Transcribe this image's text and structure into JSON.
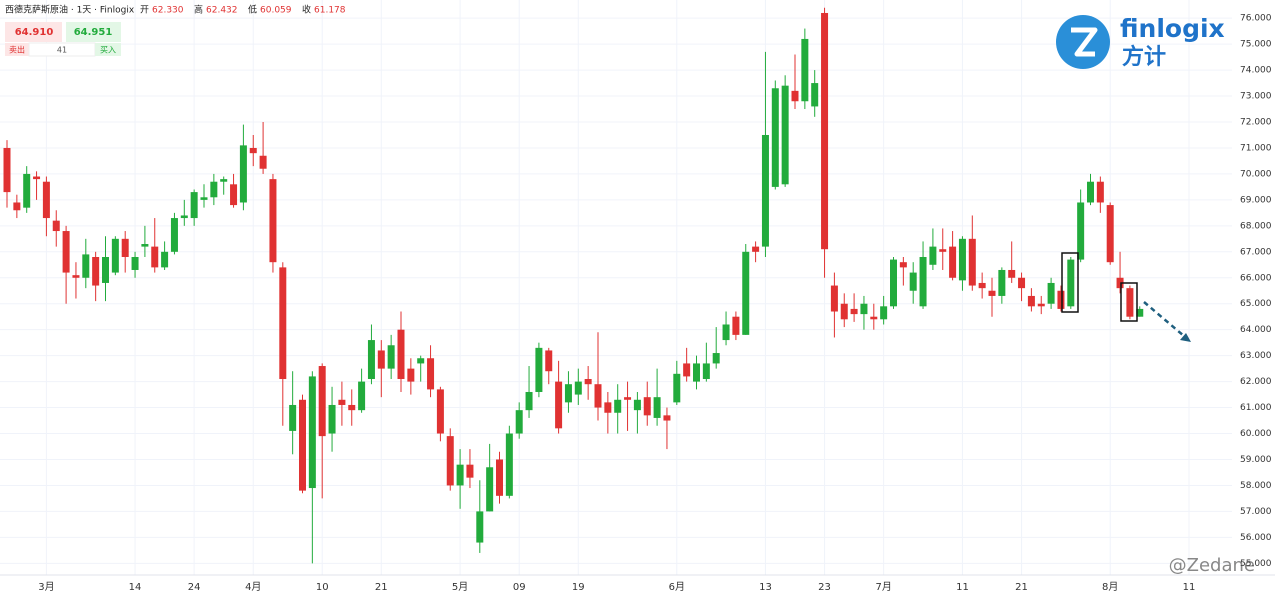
{
  "chart_data": {
    "type": "candlestick",
    "title": "西德克萨斯原油 · 1天 · Finlogix",
    "up_color": "#22ab3c",
    "down_color": "#e03232",
    "grid": true,
    "ylim": [
      54.55,
      76.7
    ],
    "yticks": [
      {
        "value": 55,
        "label": "55.000"
      },
      {
        "value": 56,
        "label": "56.000"
      },
      {
        "value": 57,
        "label": "57.000"
      },
      {
        "value": 58,
        "label": "58.000"
      },
      {
        "value": 59,
        "label": "59.000"
      },
      {
        "value": 60,
        "label": "60.000"
      },
      {
        "value": 61,
        "label": "61.000"
      },
      {
        "value": 62,
        "label": "62.000"
      },
      {
        "value": 63,
        "label": "63.000"
      },
      {
        "value": 64,
        "label": "64.000"
      },
      {
        "value": 65,
        "label": "65.000"
      },
      {
        "value": 66,
        "label": "66.000"
      },
      {
        "value": 67,
        "label": "67.000"
      },
      {
        "value": 68,
        "label": "68.000"
      },
      {
        "value": 69,
        "label": "69.000"
      },
      {
        "value": 70,
        "label": "70.000"
      },
      {
        "value": 71,
        "label": "71.000"
      },
      {
        "value": 72,
        "label": "72.000"
      },
      {
        "value": 73,
        "label": "73.000"
      },
      {
        "value": 74,
        "label": "74.000"
      },
      {
        "value": 75,
        "label": "75.000"
      },
      {
        "value": 76,
        "label": "76.000"
      }
    ],
    "categories": [
      null,
      null,
      null,
      null,
      "3月",
      null,
      null,
      null,
      null,
      null,
      null,
      null,
      null,
      "14",
      null,
      null,
      null,
      null,
      null,
      "24",
      null,
      null,
      null,
      null,
      null,
      "4月",
      null,
      null,
      null,
      null,
      null,
      null,
      "10",
      null,
      null,
      null,
      null,
      null,
      "21",
      null,
      null,
      null,
      null,
      null,
      null,
      null,
      "5月",
      null,
      null,
      null,
      null,
      null,
      "09",
      null,
      null,
      null,
      null,
      null,
      "19",
      null,
      null,
      null,
      null,
      null,
      null,
      null,
      null,
      null,
      "6月",
      null,
      null,
      null,
      null,
      null,
      null,
      null,
      null,
      "13",
      null,
      null,
      null,
      null,
      null,
      "23",
      null,
      null,
      null,
      null,
      null,
      "7月",
      null,
      null,
      null,
      null,
      null,
      null,
      null,
      "11",
      null,
      null,
      null,
      null,
      null,
      "21",
      null,
      null,
      null,
      null,
      null,
      null,
      null,
      null,
      "8月",
      null,
      null,
      null,
      null,
      null,
      null,
      null,
      "11"
    ],
    "open": [
      71.0,
      68.9,
      68.7,
      69.9,
      69.7,
      68.2,
      67.8,
      66.1,
      66.0,
      66.8,
      65.8,
      66.2,
      67.5,
      66.3,
      67.2,
      67.2,
      66.4,
      67.0,
      68.3,
      68.3,
      69.0,
      69.1,
      69.7,
      69.6,
      68.9,
      71.0,
      70.7,
      69.8,
      66.4,
      60.1,
      61.3,
      57.9,
      62.6,
      60.0,
      61.3,
      61.1,
      60.9,
      62.1,
      63.2,
      62.5,
      64.0,
      62.5,
      62.7,
      62.9,
      61.7,
      59.9,
      58.0,
      58.8,
      55.8,
      57.0,
      59.0,
      57.6,
      60.0,
      60.9,
      61.6,
      63.2,
      62.0,
      61.2,
      61.5,
      62.1,
      61.9,
      61.2,
      60.8,
      61.4,
      60.9,
      61.4,
      60.6,
      60.7,
      61.2,
      62.7,
      62.0,
      62.1,
      62.7,
      63.6,
      64.5,
      63.8,
      67.2,
      67.2,
      69.5,
      69.6,
      73.2,
      72.8,
      72.6,
      76.2,
      65.7,
      65.0,
      64.8,
      64.6,
      64.5,
      64.4,
      64.9,
      66.6,
      65.5,
      64.9,
      66.5,
      67.1,
      67.2,
      65.9,
      67.5,
      65.8,
      65.5,
      65.3,
      66.3,
      66.0,
      65.3,
      65.0,
      65.0,
      65.5,
      64.9,
      66.7,
      68.9,
      69.7,
      68.8,
      66.0,
      65.6,
      64.5,
      null,
      null,
      null,
      null,
      null
    ],
    "high": [
      71.3,
      69.2,
      70.3,
      70.1,
      69.9,
      68.6,
      68.0,
      66.6,
      67.5,
      67.0,
      67.6,
      67.6,
      67.8,
      67.0,
      68.0,
      68.3,
      67.4,
      68.5,
      69.0,
      69.4,
      69.6,
      70.0,
      69.9,
      70.0,
      71.9,
      71.5,
      72.0,
      70.0,
      66.6,
      62.4,
      61.5,
      62.4,
      62.7,
      61.8,
      62.0,
      61.7,
      62.5,
      64.2,
      63.6,
      63.8,
      64.7,
      62.9,
      63.0,
      63.4,
      61.8,
      60.2,
      59.4,
      59.4,
      58.2,
      59.6,
      59.3,
      60.3,
      61.2,
      62.6,
      63.5,
      63.3,
      62.8,
      62.4,
      62.5,
      62.6,
      63.9,
      61.6,
      61.9,
      62.0,
      61.6,
      62.0,
      62.5,
      61.0,
      62.8,
      63.3,
      63.0,
      63.5,
      64.1,
      64.7,
      64.7,
      67.3,
      67.4,
      74.7,
      73.6,
      73.8,
      74.6,
      75.6,
      74.0,
      76.4,
      66.2,
      65.4,
      65.4,
      65.3,
      65.0,
      65.3,
      66.8,
      66.8,
      66.6,
      67.4,
      67.9,
      67.9,
      67.8,
      67.6,
      68.4,
      66.2,
      66.0,
      66.4,
      67.4,
      66.2,
      65.6,
      65.3,
      66.0,
      65.7,
      66.8,
      69.4,
      70.0,
      69.9,
      68.9,
      67.0,
      65.7,
      64.9,
      null,
      null,
      null,
      null,
      null
    ],
    "low": [
      68.7,
      68.3,
      68.5,
      69.0,
      67.6,
      67.2,
      65.0,
      65.2,
      65.6,
      65.1,
      65.1,
      66.1,
      66.2,
      66.0,
      66.8,
      66.2,
      66.3,
      66.9,
      68.0,
      68.0,
      68.7,
      68.8,
      69.2,
      68.7,
      68.6,
      70.3,
      70.0,
      66.2,
      60.3,
      59.2,
      57.7,
      55.0,
      57.5,
      59.3,
      60.3,
      60.3,
      60.8,
      61.9,
      61.4,
      62.1,
      61.6,
      61.5,
      62.0,
      61.4,
      59.7,
      57.8,
      57.1,
      57.9,
      55.4,
      57.0,
      57.3,
      57.5,
      59.8,
      60.6,
      61.4,
      61.9,
      60.0,
      60.8,
      61.1,
      61.3,
      60.5,
      60.0,
      60.0,
      60.1,
      60.0,
      60.3,
      60.3,
      59.4,
      61.1,
      62.0,
      61.7,
      62.0,
      62.5,
      63.4,
      63.6,
      63.8,
      66.6,
      66.8,
      69.4,
      69.5,
      72.5,
      72.5,
      72.2,
      66.0,
      63.7,
      64.1,
      64.3,
      64.0,
      64.0,
      64.2,
      64.8,
      65.7,
      65.0,
      64.8,
      66.3,
      66.3,
      65.9,
      65.5,
      65.5,
      65.2,
      64.5,
      65.0,
      65.8,
      65.1,
      64.7,
      64.6,
      64.8,
      64.7,
      64.8,
      66.6,
      68.8,
      68.5,
      66.5,
      65.4,
      64.4,
      64.5,
      null,
      null,
      null,
      null,
      null
    ],
    "close": [
      69.3,
      68.6,
      70.0,
      69.8,
      68.3,
      67.8,
      66.2,
      66.0,
      66.9,
      65.7,
      66.8,
      67.5,
      66.8,
      66.8,
      67.3,
      66.4,
      67.0,
      68.3,
      68.4,
      69.3,
      69.1,
      69.7,
      69.8,
      68.8,
      71.1,
      70.8,
      70.2,
      66.6,
      62.1,
      61.1,
      57.8,
      62.2,
      59.9,
      61.1,
      61.1,
      60.9,
      62.0,
      63.6,
      62.5,
      63.4,
      62.1,
      62.0,
      62.9,
      61.7,
      60.0,
      58.0,
      58.8,
      58.3,
      57.0,
      58.7,
      57.6,
      60.0,
      60.9,
      61.6,
      63.3,
      62.4,
      60.2,
      61.9,
      62.0,
      61.9,
      61.0,
      60.8,
      61.3,
      61.3,
      61.3,
      60.7,
      61.4,
      60.5,
      62.3,
      62.2,
      62.7,
      62.7,
      63.1,
      64.2,
      63.8,
      67.0,
      67.0,
      71.5,
      73.3,
      73.4,
      72.8,
      75.2,
      73.5,
      67.1,
      64.7,
      64.4,
      64.6,
      65.0,
      64.4,
      64.9,
      66.7,
      66.4,
      66.2,
      66.8,
      67.2,
      67.0,
      66.0,
      67.5,
      65.7,
      65.6,
      65.3,
      66.3,
      66.0,
      65.6,
      64.9,
      64.9,
      65.8,
      64.8,
      66.7,
      68.9,
      69.7,
      68.9,
      66.6,
      65.6,
      64.5,
      64.8,
      null,
      null,
      null,
      null,
      null
    ]
  },
  "header": {
    "ohlc": [
      {
        "label": "开",
        "value": "62.330"
      },
      {
        "label": "高",
        "value": "62.432"
      },
      {
        "label": "低",
        "value": "60.059"
      },
      {
        "label": "收",
        "value": "61.178"
      }
    ],
    "sell_price": "64.910",
    "sell_label": "卖出",
    "buy_price": "64.951",
    "buy_label": "买入",
    "spread": "41"
  },
  "logo": {
    "name": "finlogix",
    "chinese": "方计"
  },
  "watermark": "@Zedane"
}
